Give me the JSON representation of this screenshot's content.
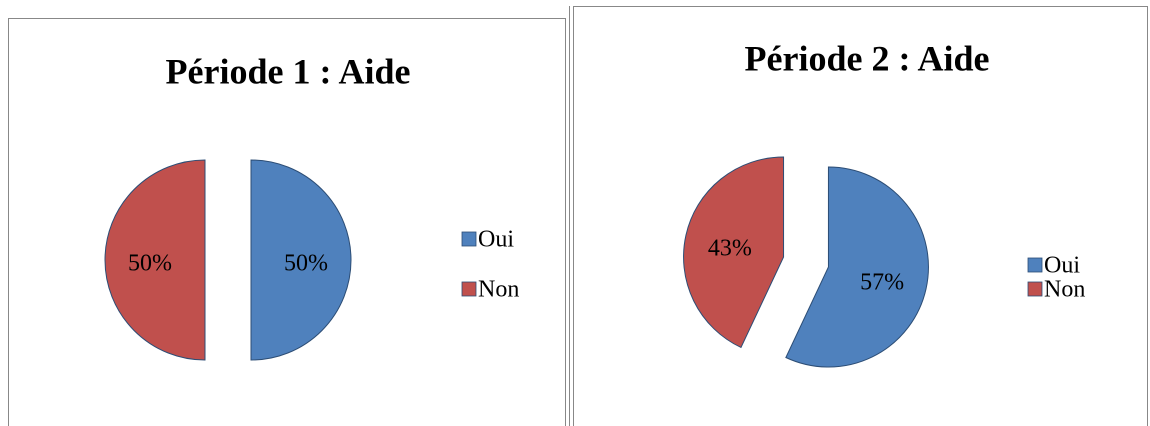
{
  "chart_data": [
    {
      "type": "pie",
      "title": "Période 1 : Aide",
      "categories": [
        "Oui",
        "Non"
      ],
      "values": [
        50,
        50
      ],
      "value_labels": [
        "50%",
        "50%"
      ],
      "colors": [
        "#4f81bd",
        "#c0504d"
      ],
      "legend": "right"
    },
    {
      "type": "pie",
      "title": "Période 2 : Aide",
      "categories": [
        "Oui",
        "Non"
      ],
      "values": [
        57,
        43
      ],
      "value_labels": [
        "57%",
        "43%"
      ],
      "colors": [
        "#4f81bd",
        "#c0504d"
      ],
      "legend": "right"
    }
  ]
}
